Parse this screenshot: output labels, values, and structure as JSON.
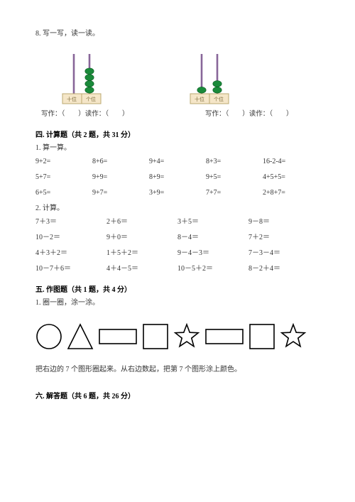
{
  "q8": {
    "title": "8. 写一写，读一读。",
    "abacus_left": {
      "tens": 0,
      "ones": 4
    },
    "abacus_right": {
      "tens": 1,
      "ones": 2
    },
    "caption": "写作：（　　）读作：（　　）",
    "place_tens": "十位",
    "place_ones": "个位"
  },
  "sec4": {
    "heading": "四. 计算题（共 2 题，共 31 分）",
    "q1": {
      "title": "1. 算一算。",
      "rows": [
        [
          "9+2=",
          "8+6=",
          "9+4=",
          "8+3=",
          "16-2-4="
        ],
        [
          "5+7=",
          "9+9=",
          "8+9=",
          "9+5=",
          "4+5+5="
        ],
        [
          "6+5=",
          "9+7=",
          "3+9=",
          "7+7=",
          "2+8+7="
        ]
      ]
    },
    "q2": {
      "title": "2. 计算。",
      "rows": [
        [
          "7＋3＝",
          "2＋6＝",
          "3＋5＝",
          "9－8＝"
        ],
        [
          "10－2＝",
          "9＋0＝",
          "8－4＝",
          "7＋2＝"
        ],
        [
          "4＋3＋2＝",
          "1＋5＋2＝",
          "9－4－3＝",
          "7－3－4＝"
        ],
        [
          "10－7＋6＝",
          "4＋4－5＝",
          "10－5＋2＝",
          "8－2＋4＝"
        ]
      ]
    }
  },
  "sec5": {
    "heading": "五. 作图题（共 1 题，共 4 分）",
    "q1_title": "1. 圈一圈，涂一涂。",
    "instruction": "把右边的 7 个图形圈起来。从右边数起，把第 7 个图形涂上颜色。",
    "shapes": [
      "circle",
      "triangle",
      "hrect",
      "square",
      "star",
      "hrect",
      "square",
      "star"
    ]
  },
  "sec6": {
    "heading": "六. 解答题（共 6 题，共 26 分）"
  },
  "colors": {
    "text": "#333333",
    "bead": "#1a8a3a",
    "bead_dark": "#0d5a24",
    "rod": "#886699",
    "frame_fill": "#f5e6c8",
    "frame_stroke": "#bba870",
    "shape_stroke": "#000000"
  }
}
